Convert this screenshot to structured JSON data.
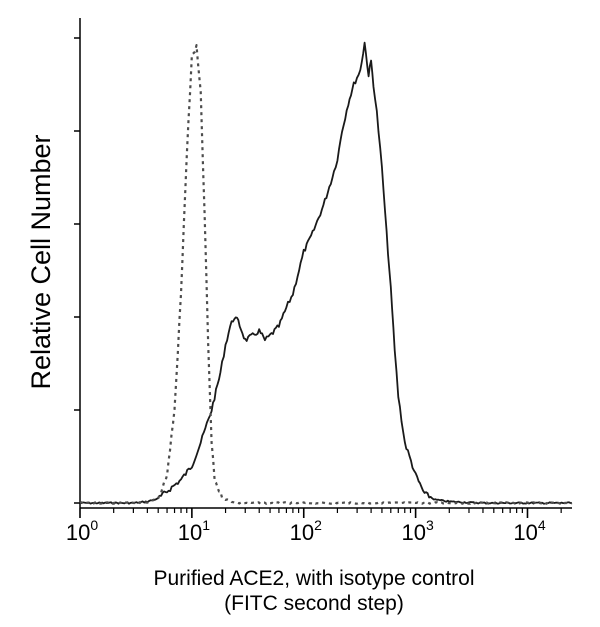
{
  "chart_data": {
    "type": "line",
    "title": "",
    "xlabel": "Purified ACE2, with isotype control",
    "xlabel_line2": "(FITC second step)",
    "ylabel": "Relative Cell Number",
    "x_scale": "log",
    "xlim": [
      1,
      25000
    ],
    "ylim": [
      0,
      1.0
    ],
    "x_ticks": [
      {
        "base": "10",
        "exp": "0",
        "value": 1
      },
      {
        "base": "10",
        "exp": "1",
        "value": 10
      },
      {
        "base": "10",
        "exp": "2",
        "value": 100
      },
      {
        "base": "10",
        "exp": "3",
        "value": 1000
      },
      {
        "base": "10",
        "exp": "4",
        "value": 10000
      }
    ],
    "y_ticks": [
      0,
      0.2,
      0.4,
      0.6,
      0.8,
      1.0
    ],
    "y_tick_labels_shown": false,
    "grid": false,
    "legend": "none",
    "series": [
      {
        "style": "solid",
        "color": "#1a1a1a",
        "x": [
          1,
          3,
          4,
          5,
          6,
          8,
          10,
          12,
          15,
          18,
          20,
          22,
          24,
          26,
          30,
          35,
          40,
          45,
          50,
          60,
          70,
          80,
          100,
          120,
          150,
          180,
          200,
          220,
          250,
          280,
          320,
          350,
          380,
          400,
          420,
          450,
          500,
          550,
          600,
          650,
          700,
          800,
          1000,
          1200,
          1500,
          2000,
          2500,
          3000,
          4000,
          6000,
          10000,
          25000
        ],
        "y": [
          0.0,
          0.0,
          0.003,
          0.01,
          0.025,
          0.05,
          0.08,
          0.13,
          0.2,
          0.28,
          0.34,
          0.38,
          0.4,
          0.39,
          0.35,
          0.36,
          0.37,
          0.35,
          0.36,
          0.38,
          0.42,
          0.45,
          0.54,
          0.58,
          0.64,
          0.7,
          0.74,
          0.8,
          0.86,
          0.9,
          0.93,
          0.99,
          0.92,
          0.95,
          0.9,
          0.84,
          0.72,
          0.58,
          0.46,
          0.33,
          0.23,
          0.13,
          0.06,
          0.02,
          0.007,
          0.003,
          0.002,
          0.001,
          0.0,
          0.0,
          0.0,
          0.0
        ]
      },
      {
        "style": "dashed",
        "color": "#4d4d4d",
        "x": [
          1,
          4,
          5,
          6,
          7,
          8,
          9,
          10,
          11,
          12,
          13,
          14,
          15,
          16,
          18,
          20,
          25,
          30,
          100,
          25000
        ],
        "y": [
          0.0,
          0.0,
          0.01,
          0.06,
          0.2,
          0.45,
          0.75,
          0.96,
          0.98,
          0.88,
          0.62,
          0.34,
          0.13,
          0.05,
          0.02,
          0.008,
          0.0,
          0.0,
          0.0,
          0.0
        ]
      }
    ]
  }
}
